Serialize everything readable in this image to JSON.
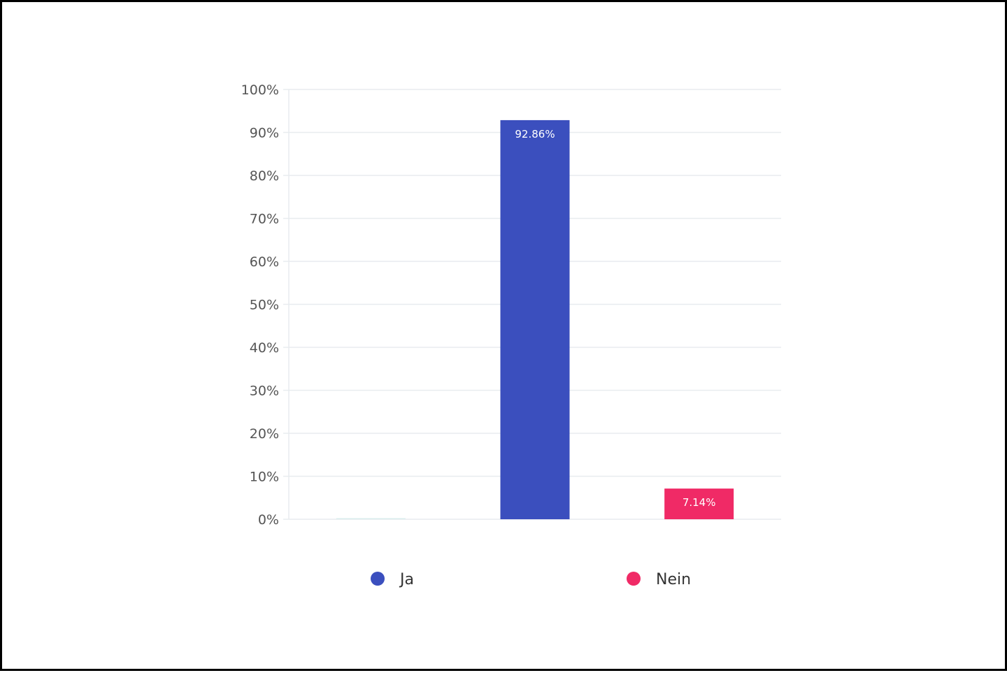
{
  "chart_data": {
    "type": "bar",
    "categories": [
      "",
      "Ja",
      "Nein"
    ],
    "values": [
      0,
      92.86,
      7.14
    ],
    "data_labels": [
      "",
      "92.86%",
      "7.14%"
    ],
    "bar_colors": [
      "#d8ecec",
      "#3b4fbe",
      "#f02a66"
    ],
    "ylim": [
      0,
      100
    ],
    "yticks": [
      0,
      10,
      20,
      30,
      40,
      50,
      60,
      70,
      80,
      90,
      100
    ],
    "ytick_labels": [
      "0%",
      "10%",
      "20%",
      "30%",
      "40%",
      "50%",
      "60%",
      "70%",
      "80%",
      "90%",
      "100%"
    ],
    "grid": true,
    "legend": {
      "position": "bottom",
      "entries": [
        {
          "label": "Ja",
          "color": "#3b4fbe"
        },
        {
          "label": "Nein",
          "color": "#f02a66"
        }
      ]
    },
    "gridline_color": "#e8ecef"
  }
}
